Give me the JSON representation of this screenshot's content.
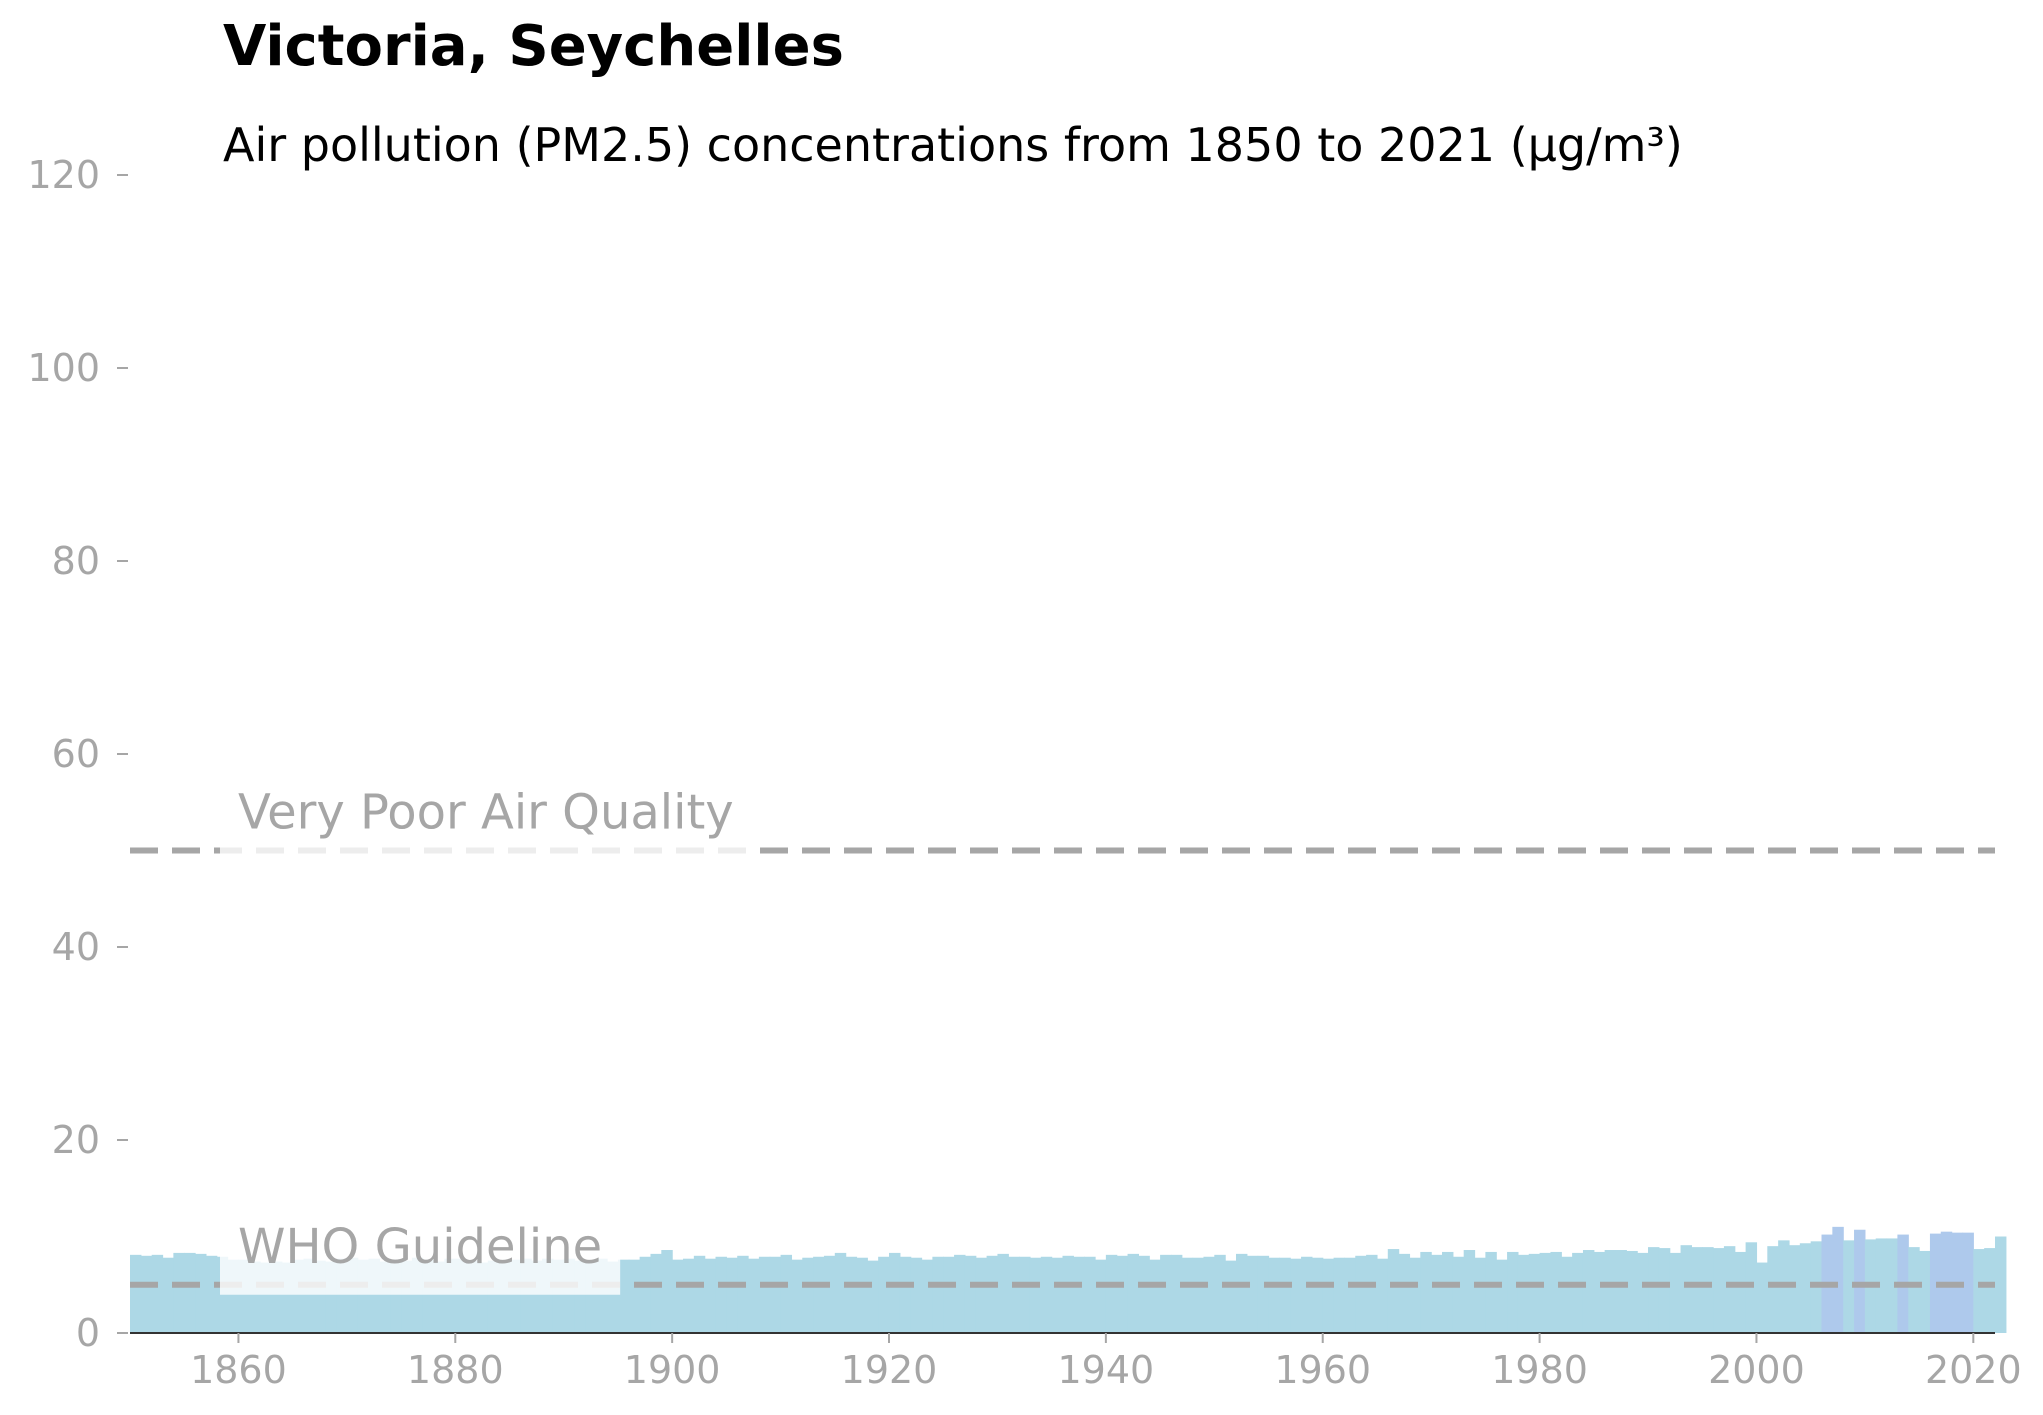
{
  "title": "Victoria, Seychelles",
  "subtitle": "Air pollution (PM2.5) concentrations from 1850 to 2021 (µg/m³)",
  "colors": {
    "bar": "#add8e6",
    "bar_highlight": "#aec9ec",
    "reference_line": "#a6a6a6",
    "tick_text": "#a6a6a6",
    "title": "#000000"
  },
  "chart_data": {
    "type": "bar",
    "title": "Victoria, Seychelles",
    "subtitle": "Air pollution (PM2.5) concentrations from 1850 to 2021 (µg/m³)",
    "xlabel": "",
    "ylabel": "",
    "xlim": [
      1850,
      2022
    ],
    "ylim": [
      0,
      120
    ],
    "x_ticks": [
      1860,
      1880,
      1900,
      1920,
      1940,
      1960,
      1980,
      2000,
      2020
    ],
    "y_ticks": [
      0,
      20,
      40,
      60,
      80,
      100,
      120
    ],
    "grid": false,
    "reference_lines": [
      {
        "label": "Very Poor Air Quality",
        "value": 50
      },
      {
        "label": "WHO Guideline",
        "value": 5
      }
    ],
    "highlighted_years": [
      2006,
      2007,
      2009,
      2013,
      2016,
      2017,
      2018,
      2019
    ],
    "start_year": 1850,
    "values": [
      8.1,
      8.0,
      8.1,
      7.8,
      8.3,
      8.3,
      8.2,
      8.0,
      7.9,
      7.6,
      7.6,
      7.4,
      7.3,
      7.4,
      7.3,
      7.6,
      7.7,
      7.5,
      7.4,
      7.7,
      7.8,
      7.6,
      7.7,
      7.4,
      7.6,
      7.5,
      7.8,
      7.6,
      7.4,
      7.7,
      7.7,
      7.5,
      7.3,
      7.5,
      7.5,
      7.6,
      7.7,
      7.5,
      7.7,
      7.6,
      7.7,
      7.5,
      7.5,
      7.7,
      7.4,
      7.6,
      7.6,
      7.9,
      8.2,
      8.6,
      7.6,
      7.7,
      8.0,
      7.7,
      7.9,
      7.8,
      8.0,
      7.7,
      7.9,
      7.9,
      8.1,
      7.6,
      7.8,
      7.9,
      8.0,
      8.3,
      7.9,
      7.8,
      7.5,
      7.9,
      8.3,
      7.9,
      7.8,
      7.6,
      7.9,
      7.9,
      8.1,
      8.0,
      7.8,
      8.0,
      8.2,
      7.9,
      7.9,
      7.8,
      7.9,
      7.8,
      8.0,
      7.9,
      7.9,
      7.6,
      8.1,
      8.0,
      8.2,
      8.0,
      7.6,
      8.1,
      8.1,
      7.8,
      7.8,
      7.9,
      8.1,
      7.5,
      8.2,
      8.0,
      8.0,
      7.8,
      7.8,
      7.7,
      7.9,
      7.8,
      7.7,
      7.8,
      7.8,
      8.0,
      8.1,
      7.7,
      8.7,
      8.2,
      7.8,
      8.4,
      8.1,
      8.4,
      7.9,
      8.6,
      7.8,
      8.4,
      7.6,
      8.4,
      8.1,
      8.2,
      8.3,
      8.4,
      7.9,
      8.3,
      8.6,
      8.4,
      8.6,
      8.6,
      8.5,
      8.3,
      8.9,
      8.8,
      8.3,
      9.1,
      8.9,
      8.9,
      8.8,
      9.0,
      8.4,
      9.4,
      7.3,
      9.0,
      9.6,
      9.1,
      9.3,
      9.5,
      10.2,
      11.0,
      9.6,
      10.7,
      9.7,
      9.8,
      9.8,
      10.2,
      8.9,
      8.5,
      10.3,
      10.5,
      10.4,
      10.4,
      8.7,
      8.8,
      10.0
    ]
  }
}
